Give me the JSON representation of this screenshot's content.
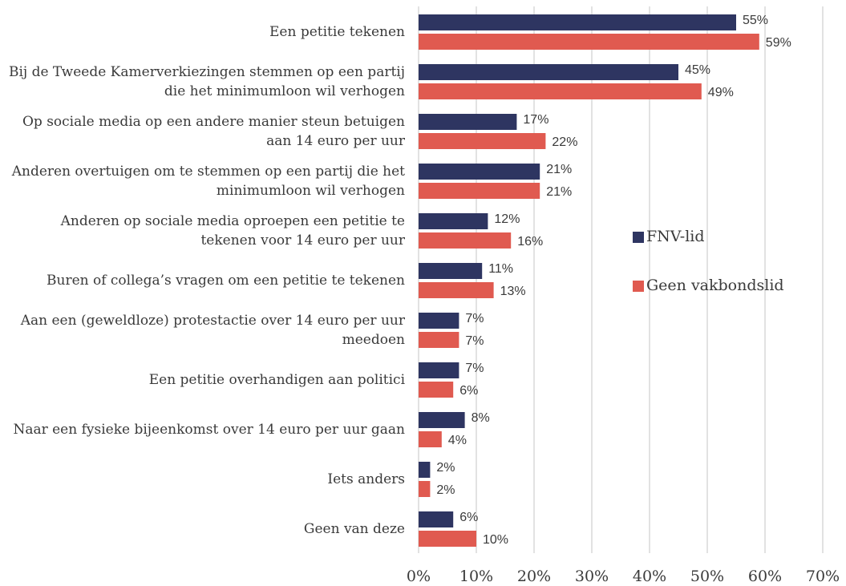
{
  "chart_data": {
    "type": "bar",
    "orientation": "horizontal",
    "categories": [
      "Een petitie tekenen",
      "Bij de Tweede Kamerverkiezingen stemmen op een partij die het minimumloon wil verhogen",
      "Op sociale media op een andere manier steun betuigen aan 14 euro per uur",
      "Anderen overtuigen om te stemmen op een partij die het minimumloon wil verhogen",
      "Anderen op sociale media oproepen een petitie te tekenen voor 14 euro per uur",
      "Buren of collega’s vragen om een petitie te tekenen",
      "Aan een (geweldloze) protestactie over 14 euro per uur meedoen",
      "Een petitie overhandigen aan politici",
      "Naar een fysieke bijeenkomst over 14 euro per uur gaan",
      "Iets anders",
      "Geen van deze"
    ],
    "series": [
      {
        "name": "FNV-lid",
        "color": "#2e3561",
        "values": [
          55,
          45,
          17,
          21,
          12,
          11,
          7,
          7,
          8,
          2,
          6
        ],
        "value_labels": [
          "55%",
          "45%",
          "17%",
          "21%",
          "12%",
          "11%",
          "7%",
          "7%",
          "8%",
          "2%",
          "6%"
        ]
      },
      {
        "name": "Geen vakbondslid",
        "color": "#e05a50",
        "values": [
          59,
          49,
          22,
          21,
          16,
          13,
          7,
          6,
          4,
          2,
          10
        ],
        "value_labels": [
          "59%",
          "49%",
          "22%",
          "21%",
          "16%",
          "13%",
          "7%",
          "6%",
          "4%",
          "2%",
          "10%"
        ]
      }
    ],
    "xlim": [
      0,
      70
    ],
    "xticks": [
      {
        "value": 0,
        "label": "0%"
      },
      {
        "value": 10,
        "label": "10%"
      },
      {
        "value": 20,
        "label": "20%"
      },
      {
        "value": 30,
        "label": "30%"
      },
      {
        "value": 40,
        "label": "40%"
      },
      {
        "value": 50,
        "label": "50%"
      },
      {
        "value": 60,
        "label": "60%"
      },
      {
        "value": 70,
        "label": "70%"
      }
    ],
    "grid": true,
    "legend": "right"
  }
}
